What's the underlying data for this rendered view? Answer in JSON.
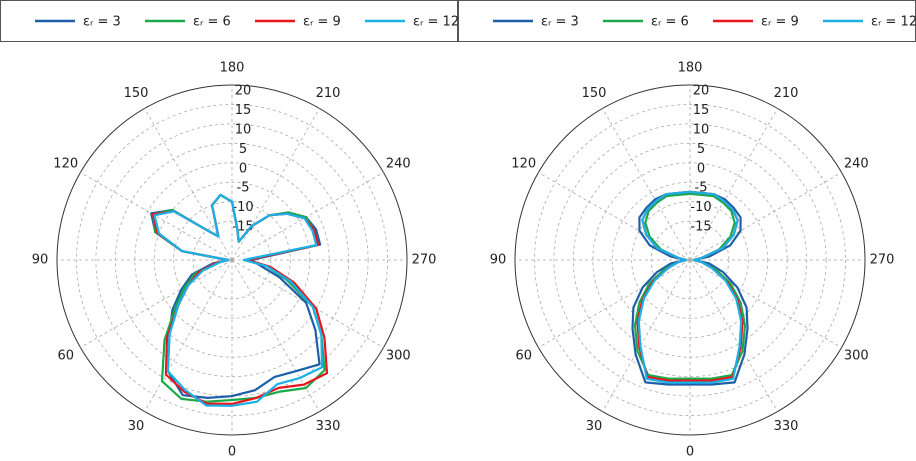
{
  "chart_data": [
    {
      "type": "polar",
      "legend": "top",
      "grid": true,
      "xlim": [
        0,
        360
      ],
      "xticks": [
        0,
        30,
        60,
        90,
        120,
        150,
        180,
        210,
        240,
        270,
        300,
        330
      ],
      "ylim": [
        -25,
        20
      ],
      "yticks": [
        -15,
        -10,
        -5,
        0,
        5,
        10,
        15,
        20
      ],
      "x": [
        0,
        10,
        20,
        30,
        40,
        50,
        60,
        70,
        80,
        90,
        100,
        110,
        120,
        130,
        140,
        150,
        160,
        170,
        180,
        190,
        200,
        210,
        220,
        230,
        240,
        250,
        260,
        270,
        280,
        290,
        300,
        310,
        320,
        330,
        340,
        350
      ],
      "series": [
        {
          "name": "εᵣ = 3",
          "color": "#1f5fa8",
          "values": [
            10,
            11,
            12,
            8,
            0,
            -5,
            -10,
            -14,
            -20,
            -24,
            -12,
            -4,
            -1,
            -5,
            -15,
            -18,
            -10,
            -8,
            -10,
            -17,
            -20,
            -15,
            -10,
            -6,
            -3,
            -2,
            -2,
            -20,
            -18,
            -12,
            -3,
            3,
            10,
            8,
            7,
            9
          ]
        },
        {
          "name": "εᵣ = 6",
          "color": "#1aaa4a",
          "values": [
            11,
            12,
            13,
            11,
            2,
            -6,
            -11,
            -15,
            -21,
            -24,
            -12,
            -4,
            -1.5,
            -5,
            -15,
            -18,
            -10,
            -8,
            -10,
            -17,
            -20,
            -15,
            -10,
            -6,
            -3,
            -2.5,
            -2.5,
            -21,
            -16,
            -10,
            -1,
            5,
            12,
            13,
            11,
            11
          ]
        },
        {
          "name": "εᵣ = 9",
          "color": "#e8151b",
          "values": [
            12,
            12.5,
            11,
            9,
            1,
            -7,
            -12,
            -16,
            -21,
            -24,
            -12,
            -4.5,
            -1.5,
            -5.5,
            -15,
            -18,
            -10,
            -8,
            -10,
            -17,
            -20,
            -15,
            -10,
            -6.5,
            -3.5,
            -2.5,
            -2.5,
            -21,
            -15,
            -8,
            0,
            6,
            13,
            12,
            10,
            11
          ]
        },
        {
          "name": "εᵣ = 12",
          "color": "#1ab0e8",
          "values": [
            12.5,
            13,
            10.5,
            8,
            0,
            -7,
            -12,
            -17,
            -22,
            -24,
            -12,
            -5,
            -2,
            -5.5,
            -15,
            -18,
            -10,
            -8,
            -10,
            -17,
            -20,
            -15,
            -10,
            -6.5,
            -3.5,
            -3,
            -3,
            -22,
            -16,
            -9,
            -1,
            5,
            11,
            10,
            9,
            12
          ]
        }
      ]
    },
    {
      "type": "polar",
      "legend": "top",
      "grid": true,
      "xlim": [
        0,
        360
      ],
      "xticks": [
        0,
        30,
        60,
        90,
        120,
        150,
        180,
        210,
        240,
        270,
        300,
        330
      ],
      "ylim": [
        -25,
        20
      ],
      "yticks": [
        -15,
        -10,
        -5,
        0,
        5,
        10,
        15,
        20
      ],
      "x": [
        0,
        10,
        20,
        30,
        40,
        50,
        60,
        70,
        80,
        90,
        100,
        110,
        120,
        130,
        140,
        150,
        160,
        170,
        180,
        190,
        200,
        210,
        220,
        230,
        240,
        250,
        260,
        270,
        280,
        290,
        300,
        310,
        320,
        330,
        340,
        350
      ],
      "series": [
        {
          "name": "εᵣ = 3",
          "color": "#1f5fa8",
          "values": [
            7,
            7.5,
            8.5,
            3,
            -2,
            -6,
            -11,
            -16,
            -20,
            -24,
            -20,
            -14,
            -10,
            -8,
            -7.5,
            -7,
            -7,
            -7.5,
            -7.5,
            -7.5,
            -7,
            -7,
            -7.5,
            -8,
            -10,
            -14,
            -20,
            -24,
            -20,
            -16,
            -11,
            -6,
            -2,
            3,
            8.5,
            7.5
          ]
        },
        {
          "name": "εᵣ = 6",
          "color": "#1aaa4a",
          "values": [
            5.5,
            6,
            6.5,
            2,
            -3,
            -8,
            -13,
            -18,
            -22,
            -24,
            -22,
            -17,
            -13,
            -10,
            -8.5,
            -8,
            -7.5,
            -8,
            -8,
            -8,
            -7.5,
            -8,
            -8.5,
            -10,
            -13,
            -17,
            -22,
            -24,
            -22,
            -18,
            -13,
            -8,
            -3,
            2,
            6.5,
            6
          ]
        },
        {
          "name": "εᵣ = 9",
          "color": "#e8151b",
          "values": [
            6,
            6.5,
            7,
            1,
            -4,
            -9,
            -14,
            -19,
            -22,
            -24,
            -22,
            -16,
            -12,
            -9,
            -8,
            -7.5,
            -7,
            -7.5,
            -7.5,
            -7.5,
            -7,
            -7.5,
            -8,
            -9,
            -12,
            -16,
            -22,
            -24,
            -22,
            -19,
            -14,
            -9,
            -4,
            1,
            7,
            6.5
          ]
        },
        {
          "name": "εᵣ = 12",
          "color": "#1ab0e8",
          "values": [
            6.5,
            7,
            7.5,
            0.5,
            -4.5,
            -9.5,
            -14.5,
            -19,
            -22,
            -24,
            -22,
            -16,
            -12,
            -9,
            -8,
            -7.5,
            -7,
            -7.5,
            -7.5,
            -7.5,
            -7,
            -7.5,
            -8,
            -9,
            -12,
            -16,
            -22,
            -24,
            -22,
            -19,
            -14.5,
            -9.5,
            -4.5,
            0.5,
            7.5,
            7
          ]
        }
      ]
    }
  ]
}
